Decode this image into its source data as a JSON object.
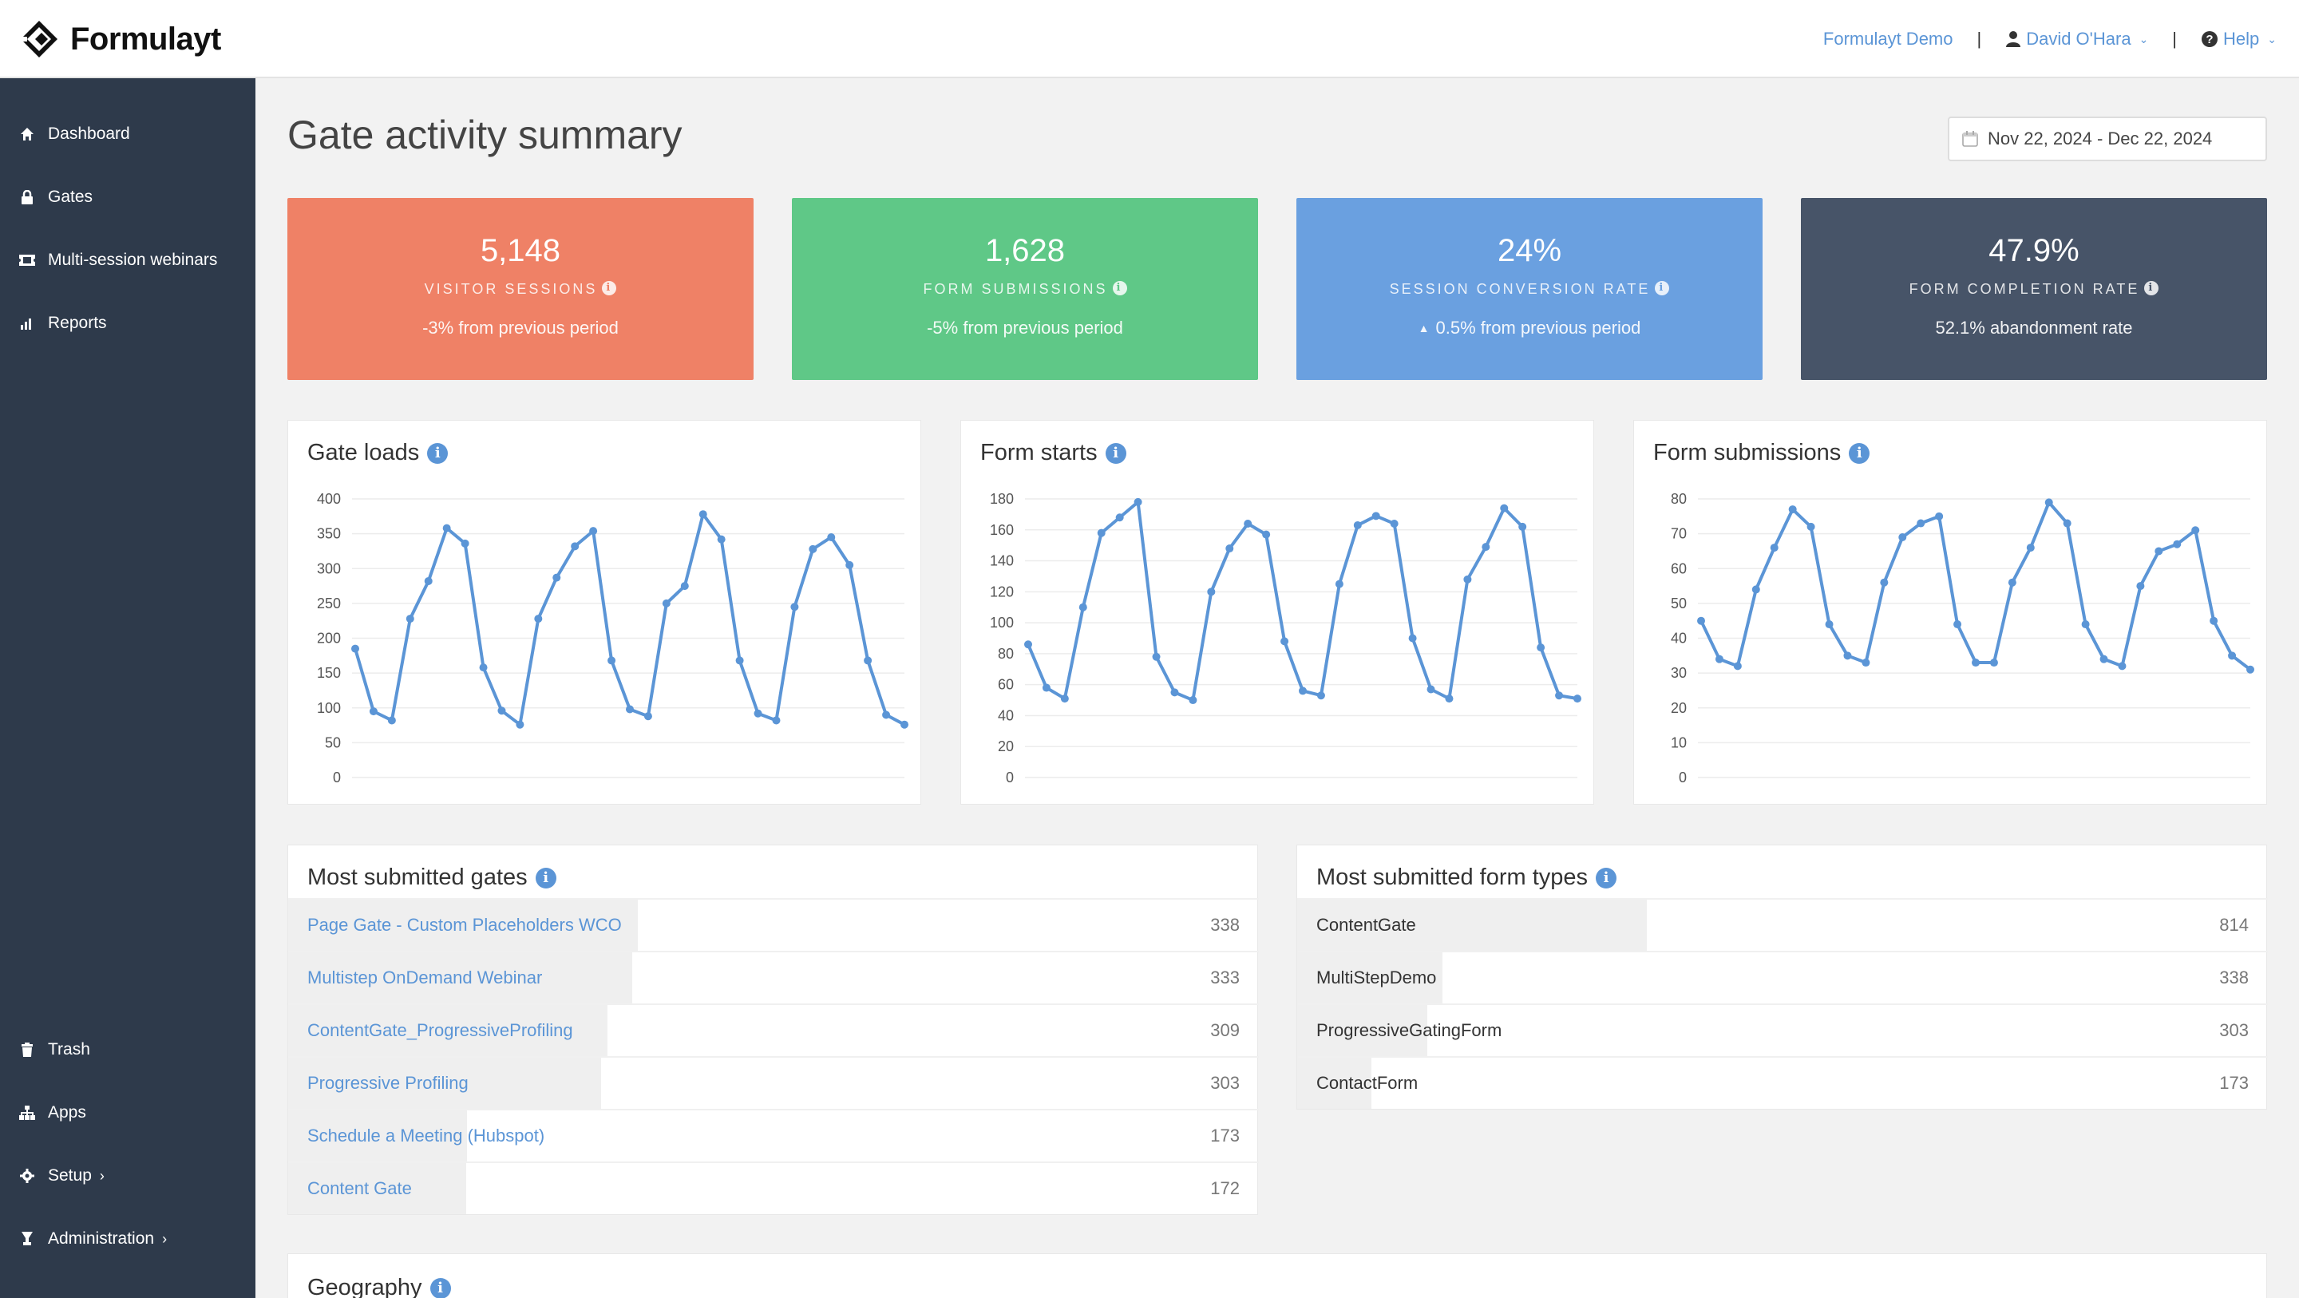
{
  "app": {
    "brand": "Formulayt"
  },
  "header": {
    "account_link": "Formulayt Demo",
    "separator": "|",
    "user_name": "David O'Hara",
    "help_label": "Help"
  },
  "sidebar": {
    "items": [
      {
        "label": "Dashboard",
        "icon": "home-icon"
      },
      {
        "label": "Gates",
        "icon": "lock-icon"
      },
      {
        "label": "Multi-session webinars",
        "icon": "ticket-icon"
      },
      {
        "label": "Reports",
        "icon": "bar-chart-icon"
      }
    ],
    "bottom_items": [
      {
        "label": "Trash",
        "icon": "trash-icon"
      },
      {
        "label": "Apps",
        "icon": "sitemap-icon"
      },
      {
        "label": "Setup",
        "icon": "gear-icon",
        "chevron": "›"
      },
      {
        "label": "Administration",
        "icon": "trophy-icon",
        "chevron": "›"
      }
    ]
  },
  "page": {
    "title": "Gate activity summary",
    "date_range": "Nov 22, 2024 - Dec 22, 2024"
  },
  "stats": [
    {
      "value": "5,148",
      "label": "VISITOR SESSIONS",
      "sub": "-3% from previous period",
      "color": "#ef8166"
    },
    {
      "value": "1,628",
      "label": "FORM SUBMISSIONS",
      "sub": "-5% from previous period",
      "color": "#5fc887"
    },
    {
      "value": "24%",
      "label": "SESSION CONVERSION RATE",
      "sub": "0.5% from previous period",
      "sub_icon": "▲",
      "color": "#6aa0e0"
    },
    {
      "value": "47.9%",
      "label": "FORM COMPLETION RATE",
      "sub": "52.1% abandonment rate",
      "color": "#475468"
    }
  ],
  "chart_data": [
    {
      "type": "line",
      "title": "Gate loads",
      "ylim": [
        0,
        400
      ],
      "yticks": [
        0,
        50,
        100,
        150,
        200,
        250,
        300,
        350,
        400
      ],
      "grid": true,
      "color": "#5b95d6",
      "values": [
        185,
        95,
        82,
        228,
        282,
        358,
        336,
        158,
        96,
        76,
        228,
        287,
        332,
        354,
        168,
        98,
        88,
        250,
        275,
        378,
        342,
        168,
        92,
        82,
        245,
        328,
        345,
        305,
        168,
        90,
        76
      ]
    },
    {
      "type": "line",
      "title": "Form starts",
      "ylim": [
        0,
        180
      ],
      "yticks": [
        0,
        20,
        40,
        60,
        80,
        100,
        120,
        140,
        160,
        180
      ],
      "grid": true,
      "color": "#5b95d6",
      "values": [
        86,
        58,
        51,
        110,
        158,
        168,
        178,
        78,
        55,
        50,
        120,
        148,
        164,
        157,
        88,
        56,
        53,
        125,
        163,
        169,
        164,
        90,
        57,
        51,
        128,
        149,
        174,
        162,
        84,
        53,
        51
      ]
    },
    {
      "type": "line",
      "title": "Form submissions",
      "ylim": [
        0,
        80
      ],
      "yticks": [
        0,
        10,
        20,
        30,
        40,
        50,
        60,
        70,
        80
      ],
      "grid": true,
      "color": "#5b95d6",
      "values": [
        45,
        34,
        32,
        54,
        66,
        77,
        72,
        44,
        35,
        33,
        56,
        69,
        73,
        75,
        44,
        33,
        33,
        56,
        66,
        79,
        73,
        44,
        34,
        32,
        55,
        65,
        67,
        71,
        45,
        35,
        31
      ]
    }
  ],
  "most_submitted_gates": {
    "title": "Most submitted gates",
    "max": 338,
    "rows": [
      {
        "name": "Page Gate - Custom Placeholders WCO",
        "count": 338
      },
      {
        "name": "Multistep OnDemand Webinar",
        "count": 333
      },
      {
        "name": "ContentGate_ProgressiveProfiling",
        "count": 309
      },
      {
        "name": "Progressive Profiling",
        "count": 303
      },
      {
        "name": "Schedule a Meeting (Hubspot)",
        "count": 173
      },
      {
        "name": "Content Gate",
        "count": 172
      }
    ]
  },
  "most_submitted_form_types": {
    "title": "Most submitted form types",
    "max": 814,
    "rows": [
      {
        "name": "ContentGate",
        "count": 814
      },
      {
        "name": "MultiStepDemo",
        "count": 338
      },
      {
        "name": "ProgressiveGatingForm",
        "count": 303
      },
      {
        "name": "ContactForm",
        "count": 173
      }
    ]
  },
  "geography": {
    "title": "Geography"
  }
}
